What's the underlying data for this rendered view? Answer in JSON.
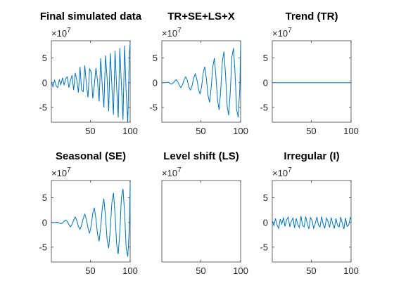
{
  "figure": {
    "background": "#ffffff",
    "series_color": "#0072BD"
  },
  "chart_data": [
    {
      "type": "line",
      "title": "Final simulated data",
      "xlim": [
        1,
        100
      ],
      "ylim": [
        -8,
        8.5
      ],
      "xticks": [
        50,
        100
      ],
      "yticks": [
        5,
        0,
        -5
      ],
      "ytick_labels": [
        "5",
        "0",
        "-5"
      ],
      "y_exponent_label": "×10",
      "y_exponent_power": "7",
      "x": [
        1,
        3,
        5,
        7,
        9,
        11,
        13,
        15,
        17,
        19,
        21,
        23,
        25,
        27,
        29,
        31,
        33,
        35,
        37,
        39,
        41,
        43,
        45,
        47,
        49,
        51,
        53,
        55,
        57,
        59,
        61,
        63,
        65,
        67,
        69,
        71,
        73,
        75,
        77,
        79,
        81,
        83,
        85,
        87,
        89,
        91,
        93,
        95,
        97,
        99,
        100
      ],
      "y": [
        0.2,
        -0.8,
        0.5,
        -0.6,
        -1.0,
        0.6,
        -0.4,
        1.0,
        -0.5,
        0.8,
        1.2,
        -1.0,
        0.5,
        1.5,
        -1.5,
        2.0,
        0.5,
        -2.0,
        3.2,
        -1.5,
        -1.8,
        3.5,
        -0.2,
        -3.0,
        2.8,
        2.2,
        -3.2,
        -0.5,
        3.0,
        0.3,
        -3.8,
        5.0,
        -0.8,
        -5.0,
        5.5,
        1.0,
        -5.8,
        6.0,
        -0.5,
        -6.5,
        6.5,
        -1.0,
        -7.0,
        7.0,
        -0.5,
        -7.5,
        7.5,
        -2.0,
        -8.0,
        6.0,
        8.0
      ]
    },
    {
      "type": "line",
      "title": "TR+SE+LS+X",
      "xlim": [
        1,
        100
      ],
      "ylim": [
        -8,
        8.5
      ],
      "xticks": [
        50,
        100
      ],
      "yticks": [
        5,
        0,
        -5
      ],
      "ytick_labels": [
        "5",
        "0",
        "-5"
      ],
      "y_exponent_label": "×10",
      "y_exponent_power": "7",
      "x": [
        1,
        5,
        9,
        11,
        13,
        15,
        17,
        19,
        21,
        23,
        25,
        27,
        29,
        31,
        33,
        35,
        37,
        39,
        41,
        43,
        45,
        47,
        49,
        51,
        53,
        55,
        57,
        59,
        61,
        63,
        65,
        67,
        69,
        71,
        73,
        75,
        77,
        79,
        81,
        83,
        85,
        87,
        89,
        91,
        93,
        95,
        97,
        99,
        100
      ],
      "y": [
        0,
        0,
        0.1,
        -0.1,
        -0.3,
        -0.1,
        0.3,
        0.6,
        0.2,
        -0.5,
        -1.0,
        -0.4,
        0.6,
        1.2,
        0.5,
        -0.9,
        -1.5,
        -0.6,
        0.9,
        1.8,
        0.7,
        -1.2,
        -2.3,
        -0.8,
        2.0,
        3.2,
        0.8,
        -2.5,
        -4.0,
        -1.0,
        3.2,
        5.0,
        1.2,
        -3.5,
        -5.5,
        -1.5,
        4.2,
        6.3,
        1.8,
        -4.6,
        -6.6,
        -2.0,
        5.2,
        7.0,
        2.0,
        -5.5,
        -7.0,
        -1.0,
        8.0
      ]
    },
    {
      "type": "line",
      "title": "Trend (TR)",
      "xlim": [
        1,
        100
      ],
      "ylim": [
        -8,
        8.5
      ],
      "xticks": [
        50,
        100
      ],
      "yticks": [
        5,
        0,
        -5
      ],
      "ytick_labels": [
        "5",
        "0",
        "-5"
      ],
      "y_exponent_label": "×10",
      "y_exponent_power": "7",
      "x": [
        1,
        100
      ],
      "y": [
        0,
        0
      ]
    },
    {
      "type": "line",
      "title": "Seasonal (SE)",
      "xlim": [
        1,
        100
      ],
      "ylim": [
        -8,
        8.5
      ],
      "xticks": [
        50,
        100
      ],
      "yticks": [
        5,
        0,
        -5
      ],
      "ytick_labels": [
        "5",
        "0",
        "-5"
      ],
      "y_exponent_label": "×10",
      "y_exponent_power": "7",
      "x": [
        1,
        5,
        9,
        11,
        13,
        15,
        17,
        19,
        21,
        23,
        25,
        27,
        29,
        31,
        33,
        35,
        37,
        39,
        41,
        43,
        45,
        47,
        49,
        51,
        53,
        55,
        57,
        59,
        61,
        63,
        65,
        67,
        69,
        71,
        73,
        75,
        77,
        79,
        81,
        83,
        85,
        87,
        89,
        91,
        93,
        95,
        97,
        99,
        100
      ],
      "y": [
        0,
        0,
        0.05,
        -0.1,
        -0.25,
        -0.1,
        0.25,
        0.5,
        0.2,
        -0.4,
        -0.9,
        -0.4,
        0.5,
        1.1,
        0.4,
        -0.8,
        -1.4,
        -0.5,
        0.8,
        1.7,
        0.6,
        -1.1,
        -2.2,
        -0.7,
        1.8,
        3.0,
        0.8,
        -2.4,
        -3.8,
        -1.0,
        3.0,
        4.8,
        1.2,
        -3.4,
        -5.2,
        -1.5,
        4.0,
        6.0,
        1.8,
        -4.4,
        -6.4,
        -2.0,
        5.0,
        6.8,
        2.0,
        -5.2,
        -6.9,
        -1.0,
        7.8
      ]
    },
    {
      "type": "line",
      "title": "Level shift (LS)",
      "xlim": [
        1,
        100
      ],
      "ylim": [
        -8,
        8.5
      ],
      "xticks": [
        50,
        100
      ],
      "yticks": [],
      "ytick_labels": [],
      "y_exponent_label": "×10",
      "y_exponent_power": "7",
      "x": [],
      "y": []
    },
    {
      "type": "line",
      "title": "Irregular (I)",
      "xlim": [
        1,
        100
      ],
      "ylim": [
        -8,
        8.5
      ],
      "xticks": [
        50,
        100
      ],
      "yticks": [
        5,
        0,
        -5
      ],
      "ytick_labels": [
        "5",
        "0",
        "-5"
      ],
      "y_exponent_label": "×10",
      "y_exponent_power": "7",
      "x": [
        1,
        3,
        5,
        7,
        9,
        11,
        13,
        15,
        17,
        19,
        21,
        23,
        25,
        27,
        29,
        31,
        33,
        35,
        37,
        39,
        41,
        43,
        45,
        47,
        49,
        51,
        53,
        55,
        57,
        59,
        61,
        63,
        65,
        67,
        69,
        71,
        73,
        75,
        77,
        79,
        81,
        83,
        85,
        87,
        89,
        91,
        93,
        95,
        97,
        99,
        100
      ],
      "y": [
        0.3,
        -0.6,
        0.8,
        -0.5,
        -1.2,
        0.7,
        -0.3,
        1.0,
        -0.8,
        0.5,
        1.1,
        -0.9,
        0.3,
        0.9,
        -1.1,
        0.8,
        -0.4,
        -1.0,
        1.3,
        -0.6,
        -0.9,
        1.2,
        -0.3,
        -1.3,
        1.0,
        0.4,
        -1.2,
        -0.2,
        1.1,
        -0.5,
        -0.9,
        1.2,
        -0.4,
        -1.1,
        0.9,
        0.2,
        -1.0,
        1.0,
        -0.3,
        -1.2,
        0.8,
        -0.6,
        -0.9,
        1.1,
        -0.2,
        -1.3,
        0.9,
        -0.8,
        -0.5,
        1.0,
        0.6
      ]
    }
  ]
}
